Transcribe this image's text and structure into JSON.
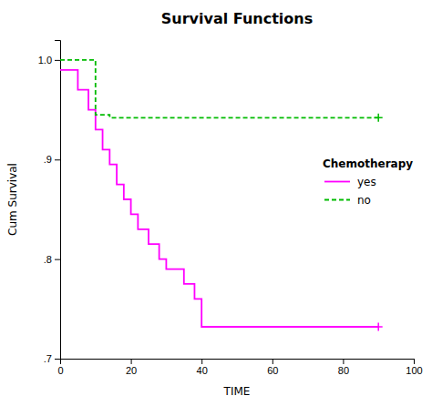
{
  "chart_data": {
    "type": "line",
    "title": "Survival Functions",
    "xlabel": "TIME",
    "ylabel": "Cum Survival",
    "xlim": [
      0,
      100
    ],
    "ylim": [
      0.7,
      1.02
    ],
    "xticks": [
      0,
      20,
      40,
      60,
      80,
      100
    ],
    "yticks": [
      {
        "value": 0.7,
        "label": ".7"
      },
      {
        "value": 0.8,
        "label": ".8"
      },
      {
        "value": 0.9,
        "label": ".9"
      },
      {
        "value": 1.0,
        "label": "1.0"
      }
    ],
    "grid": false,
    "legend": "right",
    "legend_title": "Chemotherapy",
    "series": [
      {
        "name": "yes",
        "color": "#ff00ff",
        "line_style": "solid",
        "x": [
          0,
          5,
          5,
          8,
          8,
          10,
          10,
          12,
          12,
          14,
          14,
          16,
          16,
          18,
          18,
          20,
          20,
          22,
          22,
          25,
          25,
          28,
          28,
          30,
          30,
          35,
          35,
          38,
          38,
          40,
          40,
          90
        ],
        "values": [
          0.99,
          0.99,
          0.97,
          0.97,
          0.95,
          0.95,
          0.93,
          0.93,
          0.91,
          0.91,
          0.895,
          0.895,
          0.875,
          0.875,
          0.86,
          0.86,
          0.845,
          0.845,
          0.83,
          0.83,
          0.815,
          0.815,
          0.8,
          0.8,
          0.79,
          0.79,
          0.775,
          0.775,
          0.76,
          0.76,
          0.732,
          0.732
        ],
        "censored_x": [
          90
        ],
        "censored_values": [
          0.732
        ]
      },
      {
        "name": "no",
        "color": "#00bb00",
        "line_style": "dashed",
        "x": [
          0,
          10,
          10,
          14,
          14,
          90
        ],
        "values": [
          1.0,
          1.0,
          0.945,
          0.945,
          0.942,
          0.942
        ],
        "censored_x": [
          90
        ],
        "censored_values": [
          0.942
        ]
      }
    ]
  }
}
